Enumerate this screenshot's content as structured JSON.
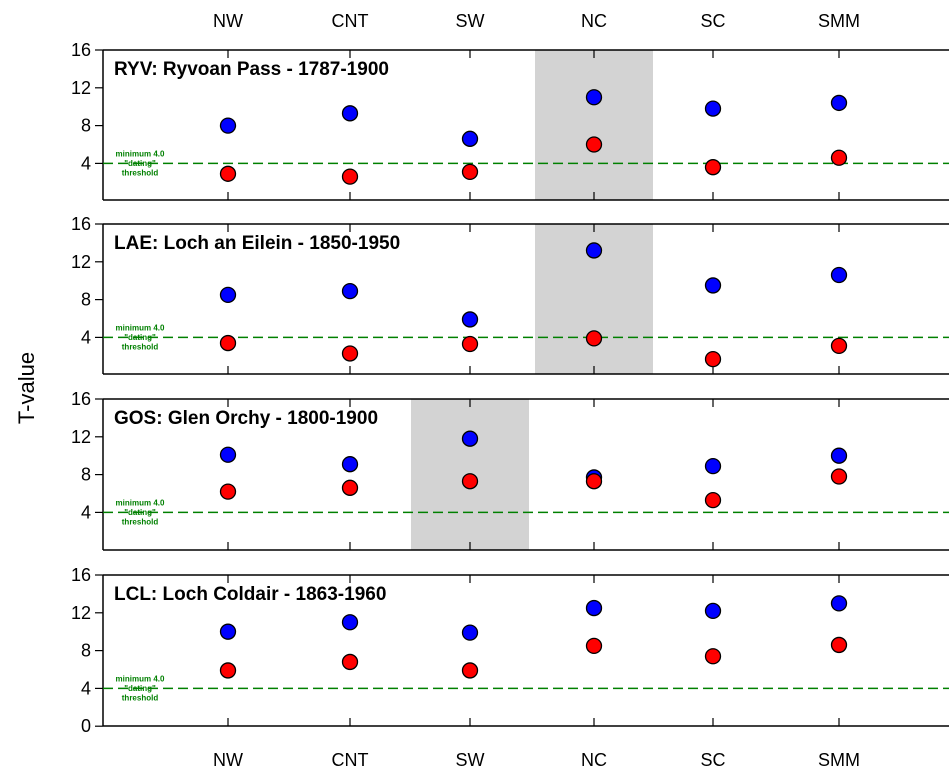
{
  "colors": {
    "blue": "#0000ff",
    "red": "#ff0000",
    "threshold": "#008000",
    "shade": "#d3d3d3"
  },
  "chart_data": {
    "type": "scatter",
    "ylabel": "T-value",
    "categories": [
      "NW",
      "CNT",
      "SW",
      "NC",
      "SC",
      "SMM"
    ],
    "threshold": {
      "value": 4.0,
      "label_lines": [
        "minimum 4.0",
        "\"dating\"",
        "threshold"
      ]
    },
    "ylim": [
      0,
      16
    ],
    "yticks": [
      "0",
      "4",
      "8",
      "12",
      "16"
    ],
    "panels": [
      {
        "title": "RYV: Ryvoan Pass - 1787-1900",
        "highlight": "NC",
        "series": [
          {
            "color": "blue",
            "values": [
              8.0,
              9.3,
              6.6,
              11.0,
              9.8,
              10.4
            ]
          },
          {
            "color": "red",
            "values": [
              2.9,
              2.6,
              3.1,
              6.0,
              3.6,
              4.6
            ]
          }
        ]
      },
      {
        "title": "LAE: Loch an Eilein - 1850-1950",
        "highlight": "NC",
        "series": [
          {
            "color": "blue",
            "values": [
              8.5,
              8.9,
              5.9,
              13.2,
              9.5,
              10.6
            ]
          },
          {
            "color": "red",
            "values": [
              3.4,
              2.3,
              3.3,
              3.9,
              1.7,
              3.1
            ]
          }
        ]
      },
      {
        "title": "GOS: Glen Orchy - 1800-1900",
        "highlight": "SW",
        "series": [
          {
            "color": "blue",
            "values": [
              10.1,
              9.1,
              11.8,
              7.7,
              8.9,
              10.0
            ]
          },
          {
            "color": "red",
            "values": [
              6.2,
              6.6,
              7.3,
              7.3,
              5.3,
              7.8
            ]
          }
        ]
      },
      {
        "title": "LCL: Loch Coldair - 1863-1960",
        "highlight": null,
        "series": [
          {
            "color": "blue",
            "values": [
              10.0,
              11.0,
              9.9,
              12.5,
              12.2,
              13.0
            ]
          },
          {
            "color": "red",
            "values": [
              5.9,
              6.8,
              5.9,
              8.5,
              7.4,
              8.6
            ]
          }
        ]
      }
    ]
  }
}
